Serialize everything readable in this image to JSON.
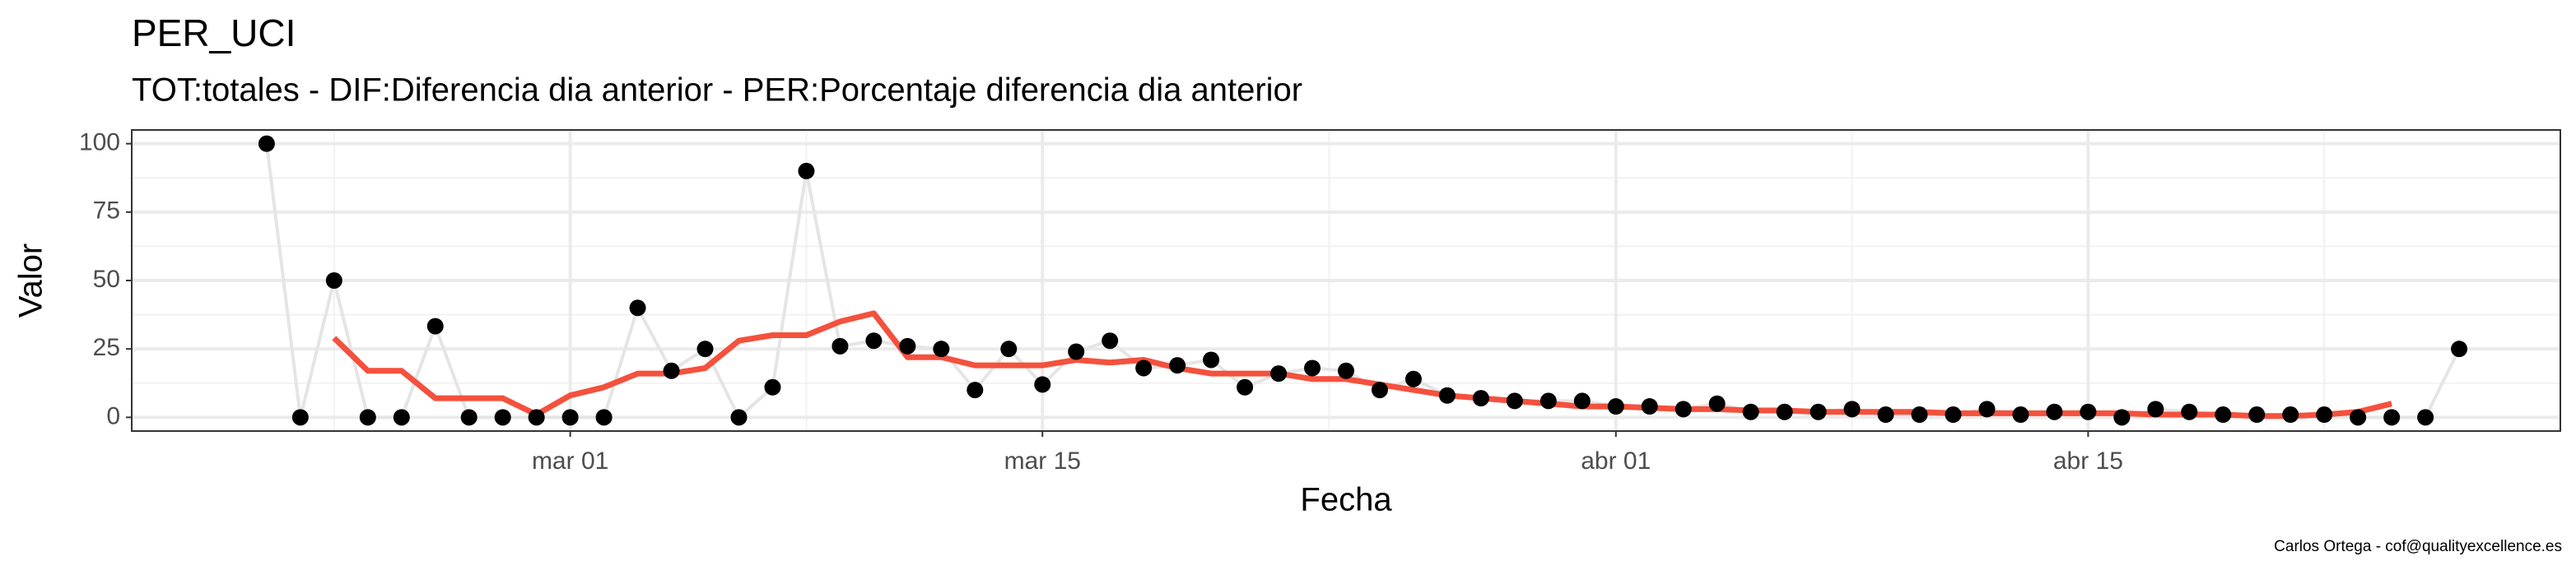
{
  "chart_data": {
    "type": "line",
    "title": "PER_UCI",
    "subtitle": "TOT:totales - DIF:Diferencia dia anterior - PER:Porcentaje diferencia dia anterior",
    "x_label": "Fecha",
    "y_label": "Valor",
    "caption": "Carlos Ortega - cof@qualityexcellence.es",
    "x": [
      "02-21",
      "02-22",
      "02-23",
      "02-24",
      "02-25",
      "02-26",
      "02-27",
      "02-28",
      "02-29",
      "03-01",
      "03-02",
      "03-03",
      "03-04",
      "03-05",
      "03-06",
      "03-07",
      "03-08",
      "03-09",
      "03-10",
      "03-11",
      "03-12",
      "03-13",
      "03-14",
      "03-15",
      "03-16",
      "03-17",
      "03-18",
      "03-19",
      "03-20",
      "03-21",
      "03-22",
      "03-23",
      "03-24",
      "03-25",
      "03-26",
      "03-27",
      "03-28",
      "03-29",
      "03-30",
      "03-31",
      "04-01",
      "04-02",
      "04-03",
      "04-04",
      "04-05",
      "04-06",
      "04-07",
      "04-08",
      "04-09",
      "04-10",
      "04-11",
      "04-12",
      "04-13",
      "04-14",
      "04-15",
      "04-16",
      "04-17",
      "04-18",
      "04-19",
      "04-20",
      "04-21",
      "04-22",
      "04-23",
      "04-24",
      "04-25",
      "04-26"
    ],
    "series": [
      {
        "color": "#000000",
        "line_color": "#e5e5e5",
        "values": [
          100,
          0,
          50,
          0,
          0,
          33.3,
          0,
          0,
          0,
          0,
          0,
          40,
          17,
          25,
          0,
          11,
          90,
          26,
          28,
          26,
          25,
          10,
          25,
          12,
          24,
          28,
          18,
          19,
          21,
          11,
          16,
          18,
          17,
          10,
          14,
          8,
          7,
          6,
          6,
          6,
          4,
          4,
          3,
          5,
          2,
          2,
          2,
          3,
          1,
          1,
          1,
          3,
          1,
          2,
          2,
          0,
          3,
          2,
          1,
          1,
          1,
          1,
          0,
          0,
          0,
          25
        ]
      },
      {
        "color": "#f4513d",
        "values": [
          null,
          null,
          29,
          17,
          17,
          7,
          7,
          7,
          1,
          8,
          11,
          16,
          16,
          18,
          28,
          30,
          30,
          35,
          38,
          22,
          22,
          19,
          19,
          19,
          21,
          20,
          21,
          18,
          16,
          16,
          16,
          14,
          14,
          12,
          10,
          8,
          7,
          6,
          5,
          4,
          4,
          3.5,
          3,
          3,
          2.5,
          2.5,
          2,
          2,
          2,
          2,
          1.5,
          1.5,
          1.5,
          1.5,
          1.5,
          1.5,
          1,
          1,
          1,
          0.5,
          0.5,
          1,
          2,
          5,
          null,
          null
        ]
      }
    ],
    "xlim": [
      "02-17",
      "04-29"
    ],
    "xticks": [
      {
        "value": "03-01",
        "label": "mar 01"
      },
      {
        "value": "03-15",
        "label": "mar 15"
      },
      {
        "value": "04-01",
        "label": "abr 01"
      },
      {
        "value": "04-15",
        "label": "abr 15"
      }
    ],
    "ylim": [
      -5,
      105
    ],
    "yticks": [
      0,
      25,
      50,
      75,
      100
    ],
    "grid": true
  }
}
